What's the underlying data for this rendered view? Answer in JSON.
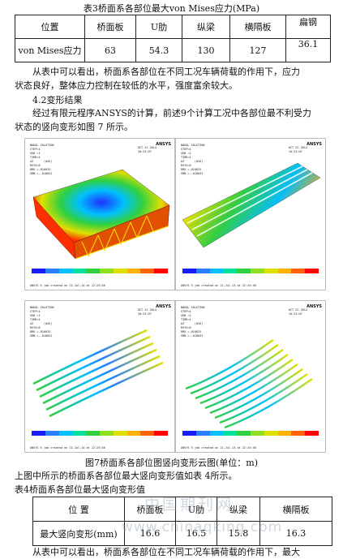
{
  "table3": {
    "caption": "表3桥面系各部位最大von Mises应力(MPa)",
    "headers": [
      "位置",
      "桥面板",
      "U肋",
      "纵梁",
      "横隔板",
      "扁钢"
    ],
    "row_label": "von Mises应力",
    "values": [
      "63",
      "54.3",
      "130",
      "127",
      "36.1"
    ]
  },
  "para1": {
    "line1": "从表中可以看出，桥面系各部位在不同工况车辆荷载的作用下，应力",
    "line2": "状态良好，整体应力控制在较低的水平，强度富余较大。"
  },
  "section": "4.2变形结果",
  "para2": {
    "line1": "经过有限元程序ANSYS的计算，前述9个计算工况中各部位最不利受力",
    "line2": "状态的竖向变形如图 7 所示。"
  },
  "figures": {
    "brand": "ANSYS",
    "meta": "NODAL SOLUTION\nSTEP=4\nSUB =1\nTIME=4\nUZ      (AVG)\nRSYS=0\nDMX =.016631\nSMN =-.016631",
    "date": "OCT 22 2014\n10:23:07",
    "footer": "ANSYS 5 job created on 21-Jul-14 at 22:25:46",
    "legend_colors": [
      "#1a1aff",
      "#2a7fff",
      "#00c0ff",
      "#00e0a0",
      "#30d040",
      "#90e020",
      "#e0e000",
      "#ffb000",
      "#ff6000",
      "#ff0000"
    ]
  },
  "figure_caption": "图7桥面系各部位图竖向变形云图(单位：m)",
  "para3": "上图中所示的桥面系各部位最大竖向变形值如表 4所示。",
  "table4": {
    "caption": "表4桥面系各部位最大竖向变形值",
    "headers": [
      "位 置",
      "桥面板",
      "U肋",
      "纵梁",
      "横隔板"
    ],
    "row_label": "最大竖向变形(mm)",
    "values": [
      "16.6",
      "16.5",
      "15.8",
      "16.3"
    ]
  },
  "watermark": {
    "line1": "中国期刊网",
    "line2": "www.chinaqking.com"
  },
  "cutoff_line": "从表中可以看出，桥面系各部位在不同工况车辆荷载的作用下，最大"
}
